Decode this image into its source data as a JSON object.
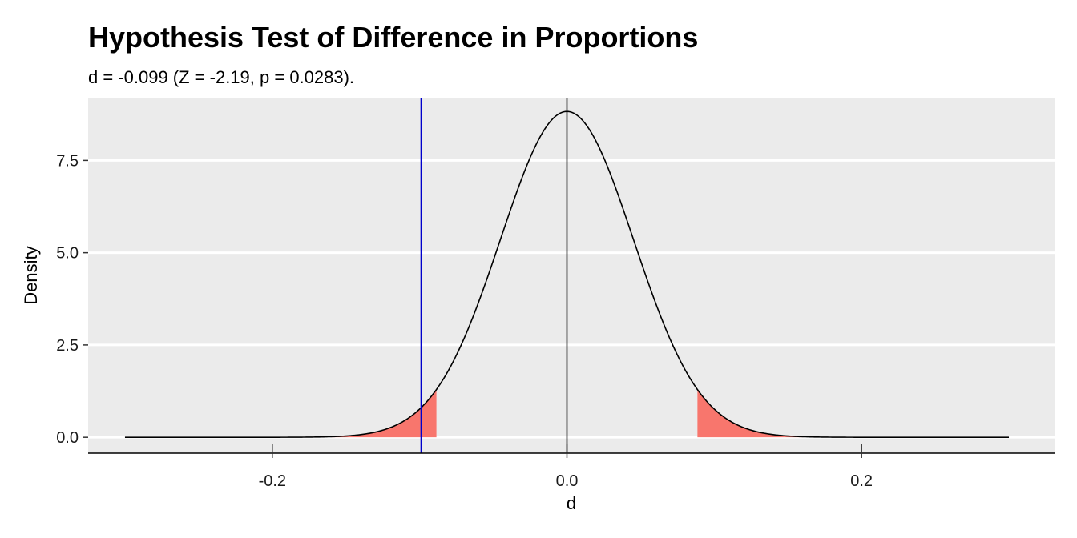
{
  "chart_data": {
    "type": "area",
    "title": "Hypothesis Test of Difference in Proportions",
    "subtitle": "d = -0.099 (Z = -2.19, p = 0.0283).",
    "xlabel": "d",
    "ylabel": "Density",
    "xlim": [
      -0.325,
      0.331
    ],
    "ylim": [
      -0.43,
      9.2
    ],
    "x_ticks": [
      -0.2,
      0.0,
      0.2
    ],
    "x_tick_labels": [
      "-0.2",
      "0.0",
      "0.2"
    ],
    "y_ticks": [
      0.0,
      2.5,
      5.0,
      7.5
    ],
    "y_tick_labels": [
      "0.0",
      "2.5",
      "5.0",
      "7.5"
    ],
    "grid": true,
    "distribution": {
      "family": "normal",
      "mean": 0,
      "sd": 0.0452,
      "x_from": -0.3,
      "x_to": 0.3
    },
    "rejection_regions": [
      {
        "from": -0.16,
        "to": -0.0886
      },
      {
        "from": 0.0886,
        "to": 0.16
      }
    ],
    "vlines": [
      {
        "x": 0.0,
        "color": "#000000"
      },
      {
        "x": -0.099,
        "color": "#0000CC"
      }
    ],
    "colors": {
      "panel": "#EBEBEB",
      "grid": "#FFFFFF",
      "curve": "#000000",
      "rejection_fill": "#F8766D"
    }
  }
}
